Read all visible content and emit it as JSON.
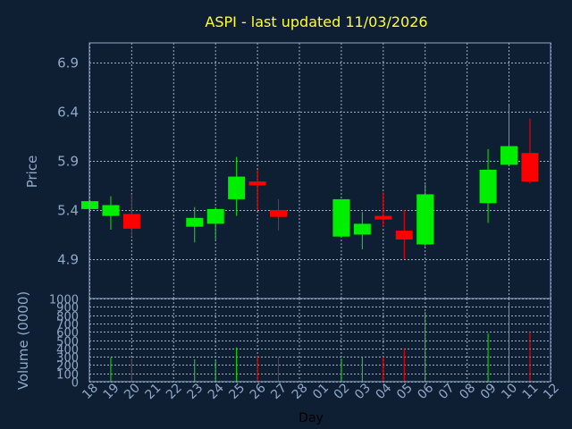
{
  "chart_data": {
    "type": "candlestick",
    "title": "ASPI - last updated 11/03/2026",
    "xlabel": "Day",
    "ylabel_price": "Price",
    "ylabel_volume": "Volume (0000)",
    "price_ylim": [
      4.5,
      7.1
    ],
    "price_ticks": [
      "4.9",
      "5.4",
      "5.9",
      "6.4",
      "6.9"
    ],
    "volume_ylim": [
      0,
      1000
    ],
    "volume_ticks": [
      "0",
      "100",
      "200",
      "300",
      "400",
      "500",
      "600",
      "700",
      "800",
      "900",
      "1000"
    ],
    "grid": true,
    "colors": {
      "up": "#00ee00",
      "down": "#ff0000",
      "title": "#ffff33",
      "axis_text": "#8fa8c8",
      "background": "#0f1f33"
    },
    "x_labels": [
      "18",
      "19",
      "20",
      "21",
      "22",
      "23",
      "24",
      "25",
      "26",
      "27",
      "28",
      "01",
      "02",
      "03",
      "04",
      "05",
      "06",
      "07",
      "08",
      "09",
      "10",
      "11",
      "12"
    ],
    "candles": [
      {
        "day": "18",
        "open": 5.41,
        "high": 5.5,
        "low": 5.4,
        "close": 5.49,
        "volume": 0
      },
      {
        "day": "19",
        "open": 5.34,
        "high": 5.54,
        "low": 5.2,
        "close": 5.45,
        "volume": 290
      },
      {
        "day": "20",
        "open": 5.36,
        "high": 5.56,
        "low": 5.13,
        "close": 5.21,
        "volume": 280
      },
      {
        "day": "23",
        "open": 5.23,
        "high": 5.43,
        "low": 5.07,
        "close": 5.32,
        "volume": 270
      },
      {
        "day": "24",
        "open": 5.26,
        "high": 5.43,
        "low": 5.1,
        "close": 5.41,
        "volume": 260
      },
      {
        "day": "25",
        "open": 5.51,
        "high": 5.94,
        "low": 5.34,
        "close": 5.74,
        "volume": 410
      },
      {
        "day": "26",
        "open": 5.69,
        "high": 5.81,
        "low": 5.4,
        "close": 5.65,
        "volume": 310
      },
      {
        "day": "27",
        "open": 5.4,
        "high": 5.51,
        "low": 5.19,
        "close": 5.33,
        "volume": 290
      },
      {
        "day": "02",
        "open": 5.13,
        "high": 5.51,
        "low": 5.13,
        "close": 5.51,
        "volume": 280
      },
      {
        "day": "03",
        "open": 5.15,
        "high": 5.38,
        "low": 5.0,
        "close": 5.26,
        "volume": 300
      },
      {
        "day": "04",
        "open": 5.34,
        "high": 5.58,
        "low": 5.23,
        "close": 5.31,
        "volume": 300
      },
      {
        "day": "05",
        "open": 5.19,
        "high": 5.4,
        "low": 4.9,
        "close": 5.1,
        "volume": 400
      },
      {
        "day": "06",
        "open": 5.05,
        "high": 5.66,
        "low": 5.03,
        "close": 5.56,
        "volume": 840
      },
      {
        "day": "09",
        "open": 5.47,
        "high": 6.02,
        "low": 5.27,
        "close": 5.81,
        "volume": 580
      },
      {
        "day": "10",
        "open": 5.86,
        "high": 6.47,
        "low": 5.86,
        "close": 6.05,
        "volume": 950
      },
      {
        "day": "11",
        "open": 5.98,
        "high": 6.33,
        "low": 5.67,
        "close": 5.69,
        "volume": 600
      }
    ]
  }
}
